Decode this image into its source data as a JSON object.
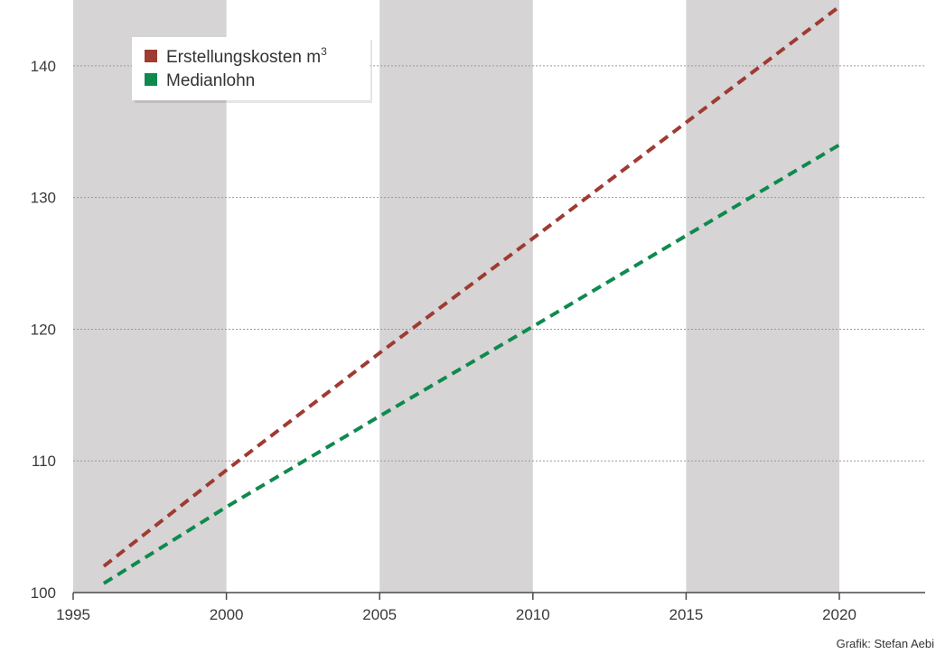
{
  "chart_data": {
    "type": "line",
    "x_ticks": [
      "1995",
      "2000",
      "2005",
      "2010",
      "2015",
      "2020"
    ],
    "y_ticks": [
      "100",
      "110",
      "120",
      "130",
      "140"
    ],
    "xlim": [
      1995,
      2022.8
    ],
    "ylim": [
      100,
      145
    ],
    "grid": "horizontal dotted",
    "shaded_periods": [
      [
        1995,
        2000
      ],
      [
        2005,
        2010
      ],
      [
        2015,
        2020
      ]
    ],
    "legend": {
      "placement": "top-left",
      "entries": [
        {
          "label": "Erstellungskosten m",
          "superscript": "3",
          "color": "#9e3b32"
        },
        {
          "label": "Medianlohn",
          "color": "#0f8a4e"
        }
      ]
    },
    "series": [
      {
        "name": "Erstellungskosten m³",
        "color": "#9e3b32",
        "style": "dashed",
        "x": [
          1996,
          2000,
          2005,
          2010,
          2015,
          2020
        ],
        "values": [
          102.0,
          109.3,
          118.2,
          126.9,
          135.7,
          144.5
        ]
      },
      {
        "name": "Medianlohn",
        "color": "#0f8a4e",
        "style": "dashed",
        "x": [
          1996,
          2000,
          2005,
          2010,
          2015,
          2020
        ],
        "values": [
          100.7,
          106.5,
          113.4,
          120.2,
          127.1,
          134.0
        ]
      }
    ]
  },
  "colors": {
    "band": "#d6d4d5",
    "grid": "#9a9a9a",
    "axis": "#4a4a4a"
  },
  "credit": "Grafik: Stefan Aebi"
}
